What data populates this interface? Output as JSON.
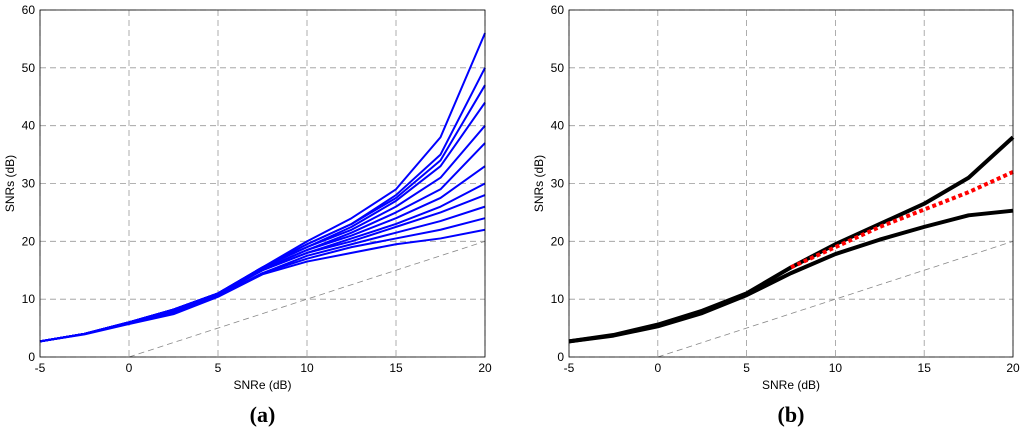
{
  "chart_data": [
    {
      "type": "line",
      "caption": "(a)",
      "x_label": "SNRe (dB)",
      "y_label": "SNRs (dB)",
      "xlim": [
        -5,
        20
      ],
      "ylim": [
        0,
        60
      ],
      "xticks": [
        -5,
        0,
        5,
        10,
        15,
        20
      ],
      "yticks": [
        0,
        10,
        20,
        30,
        40,
        50,
        60
      ],
      "grid": true,
      "x": [
        -5,
        -2.5,
        0,
        2.5,
        5,
        7.5,
        10,
        12.5,
        15,
        17.5,
        20
      ],
      "series": [
        {
          "color": "#0000ff",
          "values": [
            2.7,
            4,
            6,
            8.2,
            11,
            15.5,
            20,
            24,
            29,
            38,
            56
          ]
        },
        {
          "color": "#0000ff",
          "values": [
            2.7,
            4,
            6,
            8.2,
            11,
            15.5,
            19.5,
            23,
            28,
            35,
            50
          ]
        },
        {
          "color": "#0000ff",
          "values": [
            2.7,
            4,
            6,
            8.2,
            11,
            15.5,
            19.5,
            23,
            27.5,
            34,
            47
          ]
        },
        {
          "color": "#0000ff",
          "values": [
            2.7,
            4,
            6,
            8.2,
            11,
            15.5,
            19,
            22.5,
            27,
            33,
            44
          ]
        },
        {
          "color": "#0000ff",
          "values": [
            2.7,
            4,
            6,
            8.2,
            11,
            15.5,
            19,
            22,
            26,
            31,
            40
          ]
        },
        {
          "color": "#0000ff",
          "values": [
            2.7,
            4,
            6,
            8.2,
            11,
            15.2,
            18.5,
            21.5,
            25,
            29,
            37
          ]
        },
        {
          "color": "#0000ff",
          "values": [
            2.7,
            4,
            6,
            8.2,
            11,
            15.2,
            18.5,
            21,
            24,
            27.5,
            33
          ]
        },
        {
          "color": "#0000ff",
          "values": [
            2.7,
            4,
            6,
            8,
            10.8,
            15,
            18,
            20.5,
            23,
            26,
            30
          ]
        },
        {
          "color": "#0000ff",
          "values": [
            2.7,
            4,
            6,
            8,
            10.8,
            15,
            18,
            20,
            22.5,
            25,
            28
          ]
        },
        {
          "color": "#0000ff",
          "values": [
            2.7,
            4,
            5.8,
            7.8,
            10.6,
            14.5,
            17.5,
            19.5,
            21.5,
            23.5,
            26
          ]
        },
        {
          "color": "#0000ff",
          "values": [
            2.7,
            4,
            5.8,
            7.6,
            10.5,
            14.5,
            17,
            19,
            20.5,
            22,
            24
          ]
        },
        {
          "color": "#0000ff",
          "values": [
            2.7,
            3.9,
            5.7,
            7.4,
            10.4,
            14.3,
            16.5,
            18,
            19.5,
            20.5,
            22
          ]
        }
      ],
      "reference": {
        "x": [
          0,
          20
        ],
        "values": [
          0,
          20
        ],
        "color": "#888888"
      }
    },
    {
      "type": "line",
      "caption": "(b)",
      "x_label": "SNRe (dB)",
      "y_label": "SNRs (dB)",
      "xlim": [
        -5,
        20
      ],
      "ylim": [
        0,
        60
      ],
      "xticks": [
        -5,
        0,
        5,
        10,
        15,
        20
      ],
      "yticks": [
        0,
        10,
        20,
        30,
        40,
        50,
        60
      ],
      "grid": true,
      "x": [
        -5,
        -2.5,
        0,
        2.5,
        5,
        7.5,
        10,
        12.5,
        15,
        17.5,
        20
      ],
      "series": [
        {
          "color": "#000000",
          "values": [
            2.7,
            3.8,
            5.6,
            8,
            11,
            15.5,
            19.5,
            23,
            26.5,
            31,
            38
          ]
        },
        {
          "color": "#000000",
          "values": [
            2.7,
            3.7,
            5.3,
            7.6,
            10.7,
            14.5,
            17.8,
            20.3,
            22.5,
            24.5,
            25.3
          ]
        },
        {
          "color": "#ff0000",
          "dashed": true,
          "values": [
            null,
            null,
            null,
            null,
            null,
            15.5,
            19,
            22.5,
            25.5,
            28.5,
            32
          ]
        }
      ],
      "reference": {
        "x": [
          0,
          20
        ],
        "values": [
          0,
          20
        ],
        "color": "#888888"
      }
    }
  ]
}
